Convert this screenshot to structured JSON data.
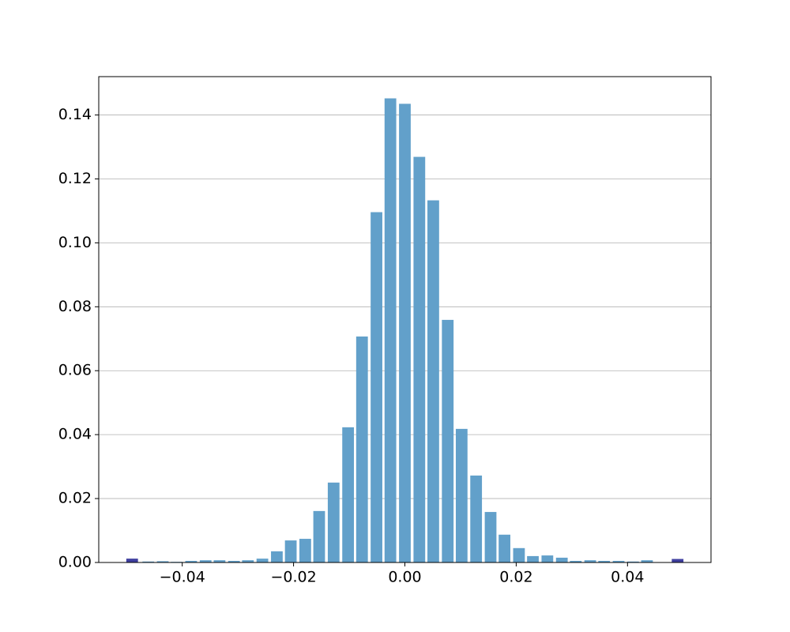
{
  "chart_data": {
    "type": "bar",
    "series": [
      {
        "color": "#62a0ca",
        "x": [
          -0.0461,
          -0.0435,
          -0.041,
          -0.0384,
          -0.0358,
          -0.0333,
          -0.0307,
          -0.0282,
          -0.0256,
          -0.023,
          -0.0205,
          -0.0179,
          -0.0154,
          -0.0128,
          -0.0102,
          -0.0077,
          -0.0051,
          -0.0026,
          0,
          0.0026,
          0.0051,
          0.0077,
          0.0102,
          0.0128,
          0.0154,
          0.0179,
          0.0205,
          0.023,
          0.0256,
          0.0282,
          0.0307,
          0.0333,
          0.0358,
          0.0384,
          0.041,
          0.0435
        ],
        "values": [
          0.0003,
          0.0004,
          0.0002,
          0.0005,
          0.0007,
          0.0007,
          0.0005,
          0.0007,
          0.0012,
          0.0035,
          0.0069,
          0.0074,
          0.0161,
          0.025,
          0.0423,
          0.0707,
          0.1096,
          0.1452,
          0.1435,
          0.1269,
          0.1133,
          0.0759,
          0.0418,
          0.0272,
          0.0158,
          0.0087,
          0.0045,
          0.002,
          0.0022,
          0.0015,
          0.0005,
          0.0007,
          0.0005,
          0.0005,
          0.0003,
          0.0007
        ]
      },
      {
        "color": "#3f3f9f",
        "x": [
          -0.049,
          0.049
        ],
        "values": [
          0.0012,
          0.0011
        ]
      }
    ],
    "xlim": [
      -0.055,
      0.055
    ],
    "ylim": [
      0,
      0.152
    ],
    "xticks": [
      {
        "value": -0.04,
        "label": "−0.04"
      },
      {
        "value": -0.02,
        "label": "−0.02"
      },
      {
        "value": 0,
        "label": "0.00"
      },
      {
        "value": 0.02,
        "label": "0.02"
      },
      {
        "value": 0.04,
        "label": "0.04"
      }
    ],
    "yticks": [
      {
        "value": 0,
        "label": "0.00"
      },
      {
        "value": 0.02,
        "label": "0.02"
      },
      {
        "value": 0.04,
        "label": "0.04"
      },
      {
        "value": 0.06,
        "label": "0.06"
      },
      {
        "value": 0.08,
        "label": "0.08"
      },
      {
        "value": 0.1,
        "label": "0.10"
      },
      {
        "value": 0.12,
        "label": "0.12"
      },
      {
        "value": 0.14,
        "label": "0.14"
      }
    ],
    "grid": "y"
  }
}
